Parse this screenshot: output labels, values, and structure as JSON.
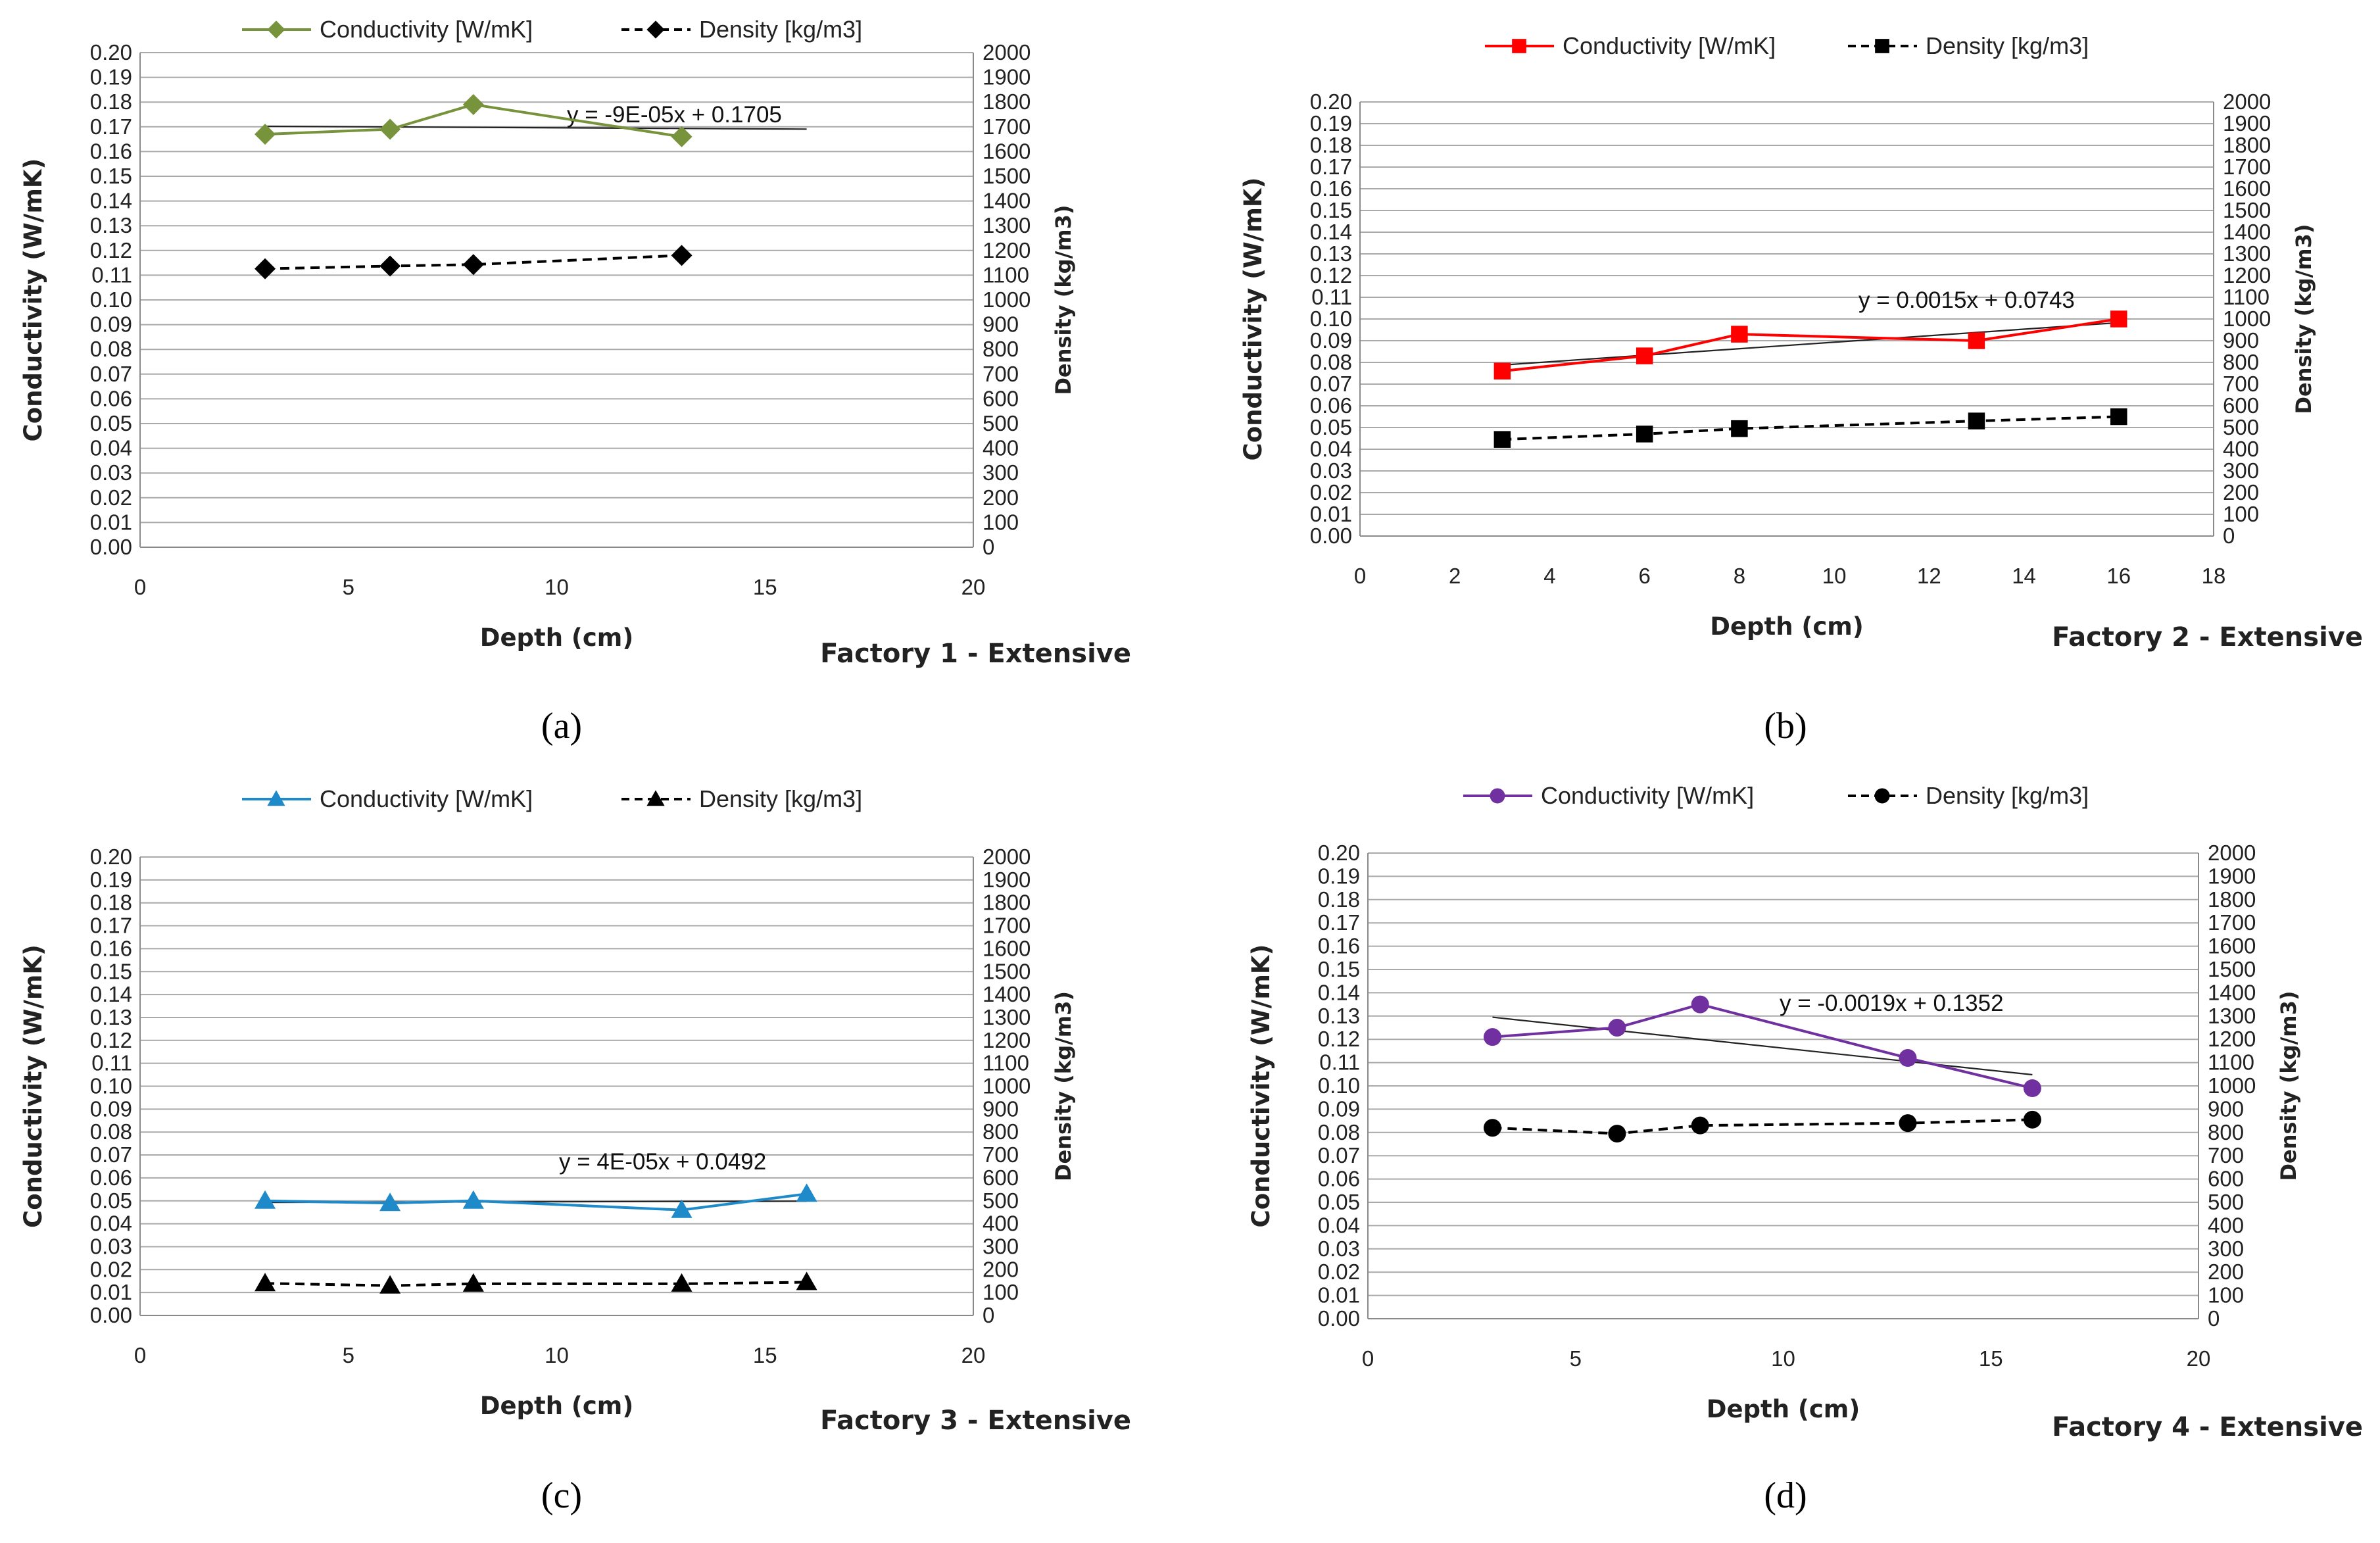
{
  "chart_data": [
    {
      "type": "line",
      "panel": "(a)",
      "caption": "Factory 1 - Extensive",
      "xlabel": "Depth (cm)",
      "ylabel": "Conductivity (W/mK)",
      "y2label": "Density (kg/m3)",
      "xlim": [
        0,
        20
      ],
      "xstep": 5,
      "ylim": [
        0,
        0.2
      ],
      "ystep": 0.01,
      "y2lim": [
        0,
        2000
      ],
      "y2step": 100,
      "grid": true,
      "legend": "top",
      "marker": "diamond",
      "conductivity_color": "#77933c",
      "series": [
        {
          "name": "Conductivity [W/mK]",
          "x": [
            3,
            6,
            8,
            13
          ],
          "values": [
            0.167,
            0.169,
            0.179,
            0.166
          ]
        },
        {
          "name": "Density [kg/m3]",
          "axis": "right",
          "x": [
            3,
            6,
            8,
            13
          ],
          "values": [
            1126,
            1137,
            1143,
            1180
          ]
        }
      ],
      "trendline": {
        "label": "y = -9E-05x + 0.1705",
        "slope": -9e-05,
        "intercept": 0.1705,
        "x_range": [
          3,
          16
        ]
      }
    },
    {
      "type": "line",
      "panel": "(b)",
      "caption": "Factory 2 - Extensive",
      "xlabel": "Depth (cm)",
      "ylabel": "Conductivity (W/mK)",
      "y2label": "Density (kg/m3)",
      "xlim": [
        0,
        18
      ],
      "xstep": 2,
      "ylim": [
        0,
        0.2
      ],
      "ystep": 0.01,
      "y2lim": [
        0,
        2000
      ],
      "y2step": 100,
      "grid": true,
      "legend": "top",
      "marker": "square",
      "conductivity_color": "#ff0000",
      "series": [
        {
          "name": "Conductivity [W/mK]",
          "x": [
            3,
            6,
            8,
            13,
            16
          ],
          "values": [
            0.076,
            0.083,
            0.093,
            0.09,
            0.1
          ]
        },
        {
          "name": "Density [kg/m3]",
          "axis": "right",
          "x": [
            3,
            6,
            8,
            13,
            16
          ],
          "values": [
            445,
            470,
            495,
            530,
            550
          ]
        }
      ],
      "trendline": {
        "label": "y = 0.0015x + 0.0743",
        "slope": 0.0015,
        "intercept": 0.0743,
        "x_range": [
          3,
          16
        ]
      }
    },
    {
      "type": "line",
      "panel": "(c)",
      "caption": "Factory 3 - Extensive",
      "xlabel": "Depth (cm)",
      "ylabel": "Conductivity (W/mK)",
      "y2label": "Density (kg/m3)",
      "xlim": [
        0,
        20
      ],
      "xstep": 5,
      "ylim": [
        0,
        0.2
      ],
      "ystep": 0.01,
      "y2lim": [
        0,
        2000
      ],
      "y2step": 100,
      "grid": true,
      "legend": "top",
      "marker": "triangle",
      "conductivity_color": "#1f8ac9",
      "series": [
        {
          "name": "Conductivity [W/mK]",
          "x": [
            3,
            6,
            8,
            13,
            16
          ],
          "values": [
            0.05,
            0.049,
            0.05,
            0.046,
            0.053
          ]
        },
        {
          "name": "Density [kg/m3]",
          "axis": "right",
          "x": [
            3,
            6,
            8,
            13,
            16
          ],
          "values": [
            140,
            130,
            138,
            138,
            145
          ]
        }
      ],
      "trendline": {
        "label": "y = 4E-05x + 0.0492",
        "slope": 4e-05,
        "intercept": 0.0492,
        "x_range": [
          3,
          16
        ]
      }
    },
    {
      "type": "line",
      "panel": "(d)",
      "caption": "Factory 4 - Extensive",
      "xlabel": "Depth (cm)",
      "ylabel": "Conductivity (W/mK)",
      "y2label": "Density (kg/m3)",
      "xlim": [
        0,
        20
      ],
      "xstep": 5,
      "ylim": [
        0,
        0.2
      ],
      "ystep": 0.01,
      "y2lim": [
        0,
        2000
      ],
      "y2step": 100,
      "grid": true,
      "legend": "top",
      "marker": "circle",
      "conductivity_color": "#7030a0",
      "series": [
        {
          "name": "Conductivity [W/mK]",
          "x": [
            3,
            6,
            8,
            13,
            16
          ],
          "values": [
            0.121,
            0.125,
            0.135,
            0.112,
            0.099
          ]
        },
        {
          "name": "Density [kg/m3]",
          "axis": "right",
          "x": [
            3,
            6,
            8,
            13,
            16
          ],
          "values": [
            820,
            795,
            830,
            840,
            855
          ]
        }
      ],
      "trendline": {
        "label": "y = -0.0019x + 0.1352",
        "slope": -0.0019,
        "intercept": 0.1352,
        "x_range": [
          3,
          16
        ]
      }
    }
  ]
}
